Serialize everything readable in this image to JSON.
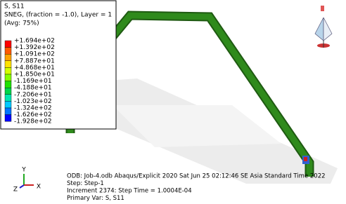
{
  "legend": {
    "title_lines": [
      "S, S11",
      "SNEG, (fraction = -1.0), Layer = 1",
      "(Avg: 75%)"
    ],
    "labels": [
      "+1.694e+02",
      "+1.392e+02",
      "+1.091e+02",
      "+7.887e+01",
      "+4.868e+01",
      "+1.850e+01",
      "-1.169e+01",
      "-4.188e+01",
      "-7.206e+01",
      "-1.023e+02",
      "-1.324e+02",
      "-1.626e+02",
      "-1.928e+02"
    ],
    "colors": [
      "#ff0000",
      "#ff5a00",
      "#ffa300",
      "#ffe100",
      "#d4ff00",
      "#86ff00",
      "#1fe000",
      "#00d54a",
      "#00e6b0",
      "#00c8ff",
      "#0074ff",
      "#0000ff"
    ]
  },
  "info": {
    "lines": [
      "ODB: Job-4.odb    Abaqus/Explicit 2020    Sat Jun 25 02:12:46 SE Asia Standard Time 2022",
      "Step: Step-1",
      "Increment    2374: Step Time =    1.0004E-04",
      "Primary Var: S, S11"
    ]
  },
  "triad": {
    "y": "Y",
    "z": "Z",
    "x": "X"
  }
}
